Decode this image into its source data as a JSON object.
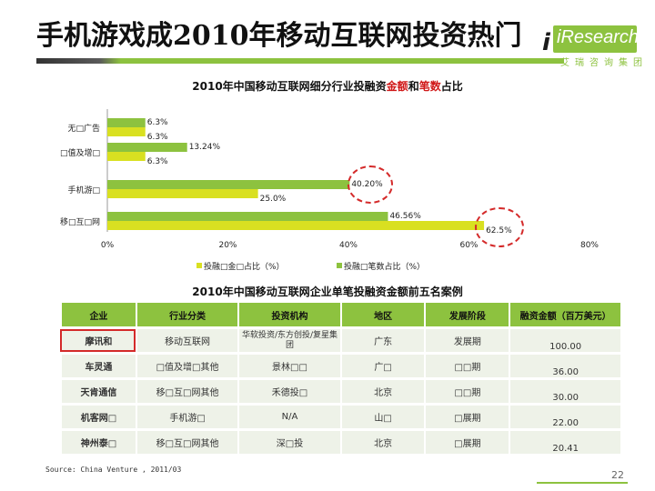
{
  "slide": {
    "title": "手机游戏成2010年移动互联网投资热门",
    "logo_text": "iResearch",
    "logo_sub": "艾瑞咨询集团",
    "source": "Source: China Venture , 2011/03",
    "page_number": "22"
  },
  "chart_data": {
    "type": "bar",
    "title_parts": [
      "2010年中国移动互联网细分行业投融资",
      "金额",
      "和",
      "笔数",
      "占比"
    ],
    "categories": [
      "无线广告",
      "增值及增值",
      "手机游戏",
      "移动互联网"
    ],
    "category_labels": [
      "无□广告",
      "□值及增□",
      "手机游□",
      "移□互□网"
    ],
    "series": [
      {
        "name": "投融资金额占比（%）",
        "color": "#d9e021",
        "values": [
          6.3,
          6.3,
          25.0,
          62.5
        ]
      },
      {
        "name": "投融资笔数占比（%）",
        "color": "#8dc23f",
        "values": [
          6.3,
          13.24,
          40.2,
          46.56
        ]
      }
    ],
    "data_labels": {
      "amount": [
        "6.3%",
        "6.3%",
        "25.0%",
        "62.5%"
      ],
      "count": [
        "6.3%",
        "13.24%",
        "40.20%",
        "46.56%"
      ]
    },
    "legend_labels": [
      "投融□金□占比（%）",
      "投融□笔数占比（%）"
    ],
    "xlim": [
      0,
      80
    ],
    "x_ticks": [
      "0%",
      "20%",
      "40%",
      "60%",
      "80%"
    ],
    "grid": false,
    "legend_position": "bottom",
    "orientation": "horizontal"
  },
  "table": {
    "title": "2010年中国移动互联网企业单笔投融资金额前五名案例",
    "headers": [
      "企业",
      "行业分类",
      "投资机构",
      "地区",
      "发展阶段",
      "融资金额（百万美元）"
    ],
    "rows": [
      [
        "摩讯和",
        "移动互联网",
        "华软投资/东方创投/复星集团",
        "广东",
        "发展期",
        "100.00"
      ],
      [
        "车灵通",
        "□值及增□其他",
        "景林□□",
        "广□",
        "□□期",
        "36.00"
      ],
      [
        "天肯通信",
        "移□互□网其他",
        "禾德投□",
        "北京",
        "□□期",
        "30.00"
      ],
      [
        "机客网□",
        "手机游□",
        "N/A",
        "山□",
        "□展期",
        "22.00"
      ],
      [
        "神州泰□",
        "移□互□网其他",
        "深□投",
        "北京",
        "□展期",
        "20.41"
      ]
    ]
  }
}
